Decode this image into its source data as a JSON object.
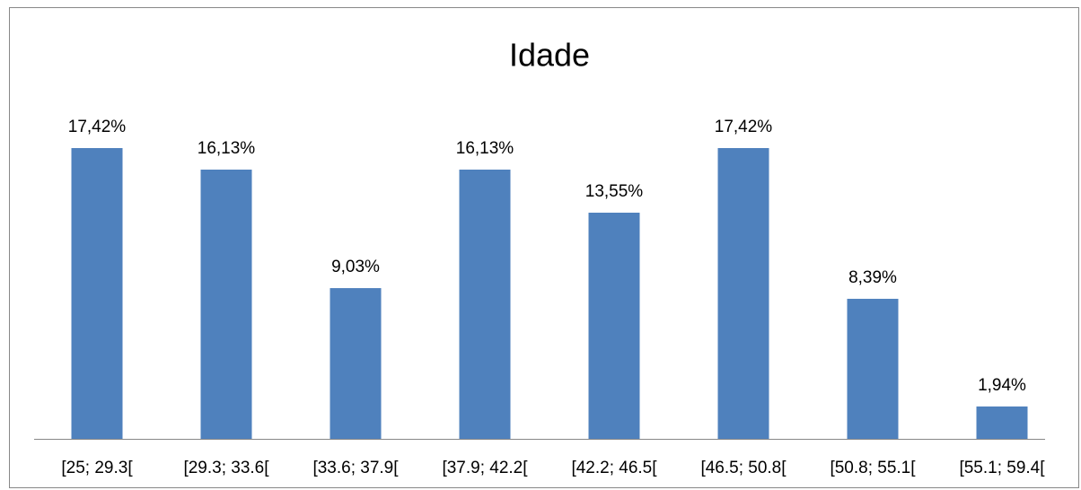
{
  "chart_data": {
    "type": "bar",
    "title": "Idade",
    "categories": [
      "[25; 29.3[",
      "[29.3; 33.6[",
      "[33.6; 37.9[",
      "[37.9; 42.2[",
      "[42.2; 46.5[",
      "[46.5; 50.8[",
      "[50.8; 55.1[",
      "[55.1; 59.4["
    ],
    "values": [
      17.42,
      16.13,
      9.03,
      16.13,
      13.55,
      17.42,
      8.39,
      1.94
    ],
    "value_labels": [
      "17,42%",
      "16,13%",
      "9,03%",
      "16,13%",
      "13,55%",
      "17,42%",
      "8,39%",
      "1,94%"
    ],
    "color": "#4f81bd"
  }
}
